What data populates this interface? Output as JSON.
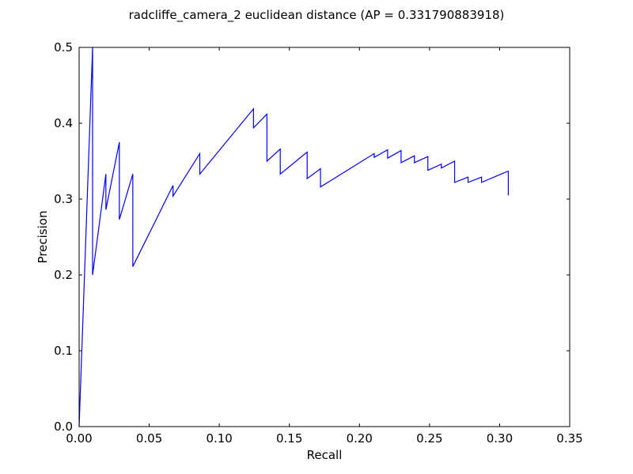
{
  "chart_data": {
    "type": "line",
    "title": "radcliffe_camera_2 euclidean distance  (AP = 0.331790883918)",
    "xlabel": "Recall",
    "ylabel": "Precision",
    "xlim": [
      0.0,
      0.35
    ],
    "ylim": [
      0.0,
      0.5
    ],
    "xticks": [
      0.0,
      0.05,
      0.1,
      0.15,
      0.2,
      0.25,
      0.3,
      0.35
    ],
    "xtick_labels": [
      "0.00",
      "0.05",
      "0.10",
      "0.15",
      "0.20",
      "0.25",
      "0.30",
      "0.35"
    ],
    "yticks": [
      0.0,
      0.1,
      0.2,
      0.3,
      0.4,
      0.5
    ],
    "ytick_labels": [
      "0.0",
      "0.1",
      "0.2",
      "0.3",
      "0.4",
      "0.5"
    ],
    "grid": false,
    "legend": "none",
    "series": [
      {
        "color": "#0000ff",
        "x": [
          0.0,
          0.0096,
          0.0096,
          0.0191,
          0.0191,
          0.0287,
          0.0287,
          0.0383,
          0.0383,
          0.067,
          0.067,
          0.0861,
          0.0861,
          0.1244,
          0.1244,
          0.134,
          0.134,
          0.1435,
          0.1435,
          0.1627,
          0.1627,
          0.1722,
          0.1722,
          0.2105,
          0.2105,
          0.2201,
          0.2201,
          0.2297,
          0.2297,
          0.2392,
          0.2392,
          0.2488,
          0.2488,
          0.2584,
          0.2584,
          0.2679,
          0.2679,
          0.2775,
          0.2775,
          0.2871,
          0.2871,
          0.3062,
          0.3062
        ],
        "y": [
          0.0,
          0.5,
          0.2,
          0.333,
          0.286,
          0.375,
          0.273,
          0.333,
          0.211,
          0.318,
          0.304,
          0.36,
          0.333,
          0.419,
          0.394,
          0.412,
          0.35,
          0.366,
          0.333,
          0.362,
          0.327,
          0.34,
          0.316,
          0.36,
          0.355,
          0.365,
          0.354,
          0.364,
          0.348,
          0.357,
          0.348,
          0.356,
          0.338,
          0.346,
          0.341,
          0.35,
          0.322,
          0.329,
          0.322,
          0.329,
          0.322,
          0.337,
          0.305
        ]
      }
    ]
  }
}
